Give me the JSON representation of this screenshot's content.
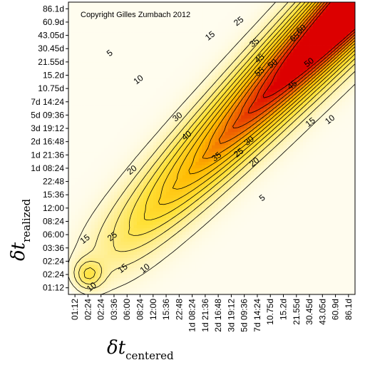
{
  "chart_data": {
    "type": "heatmap",
    "subtype": "filled-contour",
    "annotation": "Copyright Gilles Zumbach 2012",
    "xlabel": {
      "symbol": "δt",
      "subscript": "centered"
    },
    "ylabel": {
      "symbol": "δt",
      "subscript": "realized"
    },
    "x_ticks": [
      "01:12",
      "02:24",
      "02:24",
      "03:36",
      "06:00",
      "08:24",
      "12:00",
      "15:36",
      "22:48",
      "1d 08:24",
      "1d 21:36",
      "2d 16:48",
      "3d 19:12",
      "5d 09:36",
      "7d 14:24",
      "10.75d",
      "15.2d",
      "21.55d",
      "30.45d",
      "43.05d",
      "60.9d",
      "86.1d"
    ],
    "y_ticks": [
      "01:12",
      "02:24",
      "02:24",
      "03:36",
      "06:00",
      "08:24",
      "12:00",
      "15:36",
      "22:48",
      "1d 08:24",
      "1d 21:36",
      "2d 16:48",
      "3d 19:12",
      "5d 09:36",
      "7d 14:24",
      "10.75d",
      "15.2d",
      "21.55d",
      "30.45d",
      "43.05d",
      "60.9d",
      "86.1d"
    ],
    "contour_levels": [
      5,
      10,
      15,
      20,
      25,
      30,
      35,
      40,
      45,
      50,
      55,
      60,
      65
    ],
    "color_scale": {
      "low": "#ffffff",
      "mid": "#ffe040",
      "high": "#e00000"
    },
    "contour_labels": [
      {
        "text": "5",
        "i": 3.3,
        "j": 18.0
      },
      {
        "text": "10",
        "i": 5.5,
        "j": 16.0
      },
      {
        "text": "15",
        "i": 11.0,
        "j": 19.3
      },
      {
        "text": "25",
        "i": 13.2,
        "j": 20.4
      },
      {
        "text": "35",
        "i": 14.4,
        "j": 18.8
      },
      {
        "text": "45",
        "i": 14.8,
        "j": 17.6
      },
      {
        "text": "50",
        "i": 15.8,
        "j": 17.2
      },
      {
        "text": "55",
        "i": 14.8,
        "j": 16.6
      },
      {
        "text": "65",
        "i": 17.5,
        "j": 19.2
      },
      {
        "text": "60",
        "i": 18.0,
        "j": 19.8
      },
      {
        "text": "50",
        "i": 18.6,
        "j": 17.3
      },
      {
        "text": "45",
        "i": 17.3,
        "j": 15.6
      },
      {
        "text": "15",
        "i": 18.7,
        "j": 12.8
      },
      {
        "text": "10",
        "i": 20.2,
        "j": 13.0
      },
      {
        "text": "30",
        "i": 8.5,
        "j": 13.2
      },
      {
        "text": "40",
        "i": 9.2,
        "j": 11.8
      },
      {
        "text": "35",
        "i": 11.5,
        "j": 10.2
      },
      {
        "text": "25",
        "i": 13.2,
        "j": 10.5
      },
      {
        "text": "30",
        "i": 14.0,
        "j": 11.4
      },
      {
        "text": "20",
        "i": 14.4,
        "j": 9.8
      },
      {
        "text": "5",
        "i": 15.0,
        "j": 7.1
      },
      {
        "text": "20",
        "i": 5.0,
        "j": 9.2
      },
      {
        "text": "15",
        "i": 1.4,
        "j": 4.0
      },
      {
        "text": "25",
        "i": 3.5,
        "j": 4.2
      },
      {
        "text": "15",
        "i": 4.3,
        "j": 1.8
      },
      {
        "text": "10",
        "i": 6.0,
        "j": 1.8
      },
      {
        "text": "10",
        "i": 1.9,
        "j": 0.4
      }
    ]
  }
}
